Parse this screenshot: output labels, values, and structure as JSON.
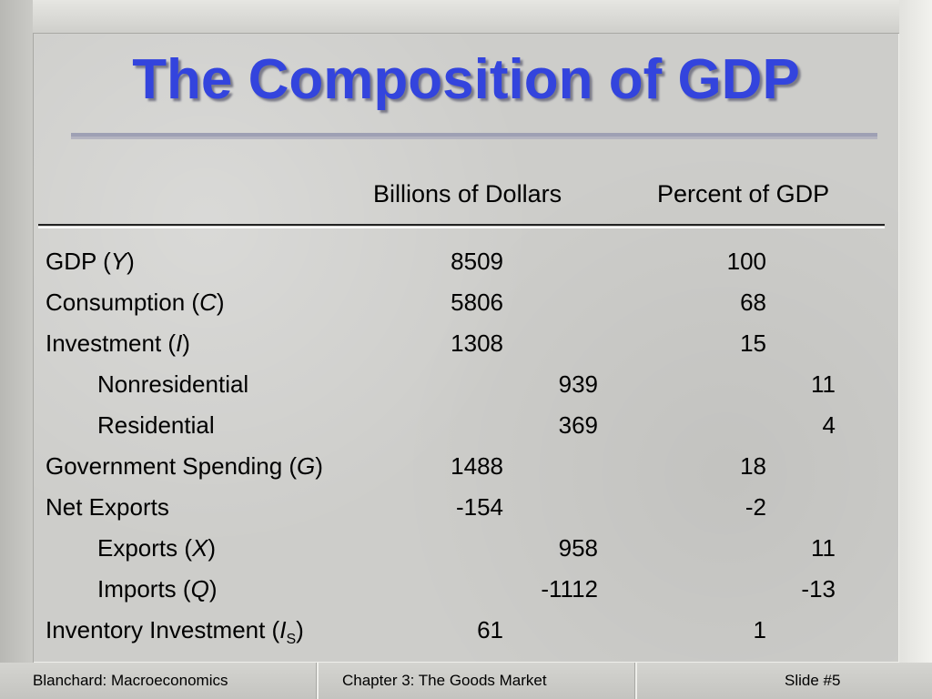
{
  "slide": {
    "title": "The Composition of GDP",
    "column_headers": {
      "billions": "Billions of Dollars",
      "percent": "Percent of GDP"
    },
    "rows": [
      {
        "label": "GDP (",
        "var": "Y",
        "sub": "",
        "close": ")",
        "billions": "8509",
        "billions_sub": "",
        "percent": "100",
        "percent_sub": "",
        "indent": false
      },
      {
        "label": "Consumption (",
        "var": "C",
        "sub": "",
        "close": ")",
        "billions": "5806",
        "billions_sub": "",
        "percent": "68",
        "percent_sub": "",
        "indent": false
      },
      {
        "label": "Investment (",
        "var": "I",
        "sub": "",
        "close": ")",
        "billions": "1308",
        "billions_sub": "",
        "percent": "15",
        "percent_sub": "",
        "indent": false
      },
      {
        "label": "Nonresidential",
        "var": "",
        "sub": "",
        "close": "",
        "billions": "",
        "billions_sub": "939",
        "percent": "",
        "percent_sub": "11",
        "indent": true
      },
      {
        "label": "Residential",
        "var": "",
        "sub": "",
        "close": "",
        "billions": "",
        "billions_sub": "369",
        "percent": "",
        "percent_sub": "4",
        "indent": true
      },
      {
        "label": "Government Spending (",
        "var": "G",
        "sub": "",
        "close": ")",
        "billions": "1488",
        "billions_sub": "",
        "percent": "18",
        "percent_sub": "",
        "indent": false
      },
      {
        "label": "Net Exports",
        "var": "",
        "sub": "",
        "close": "",
        "billions": "-154",
        "billions_sub": "",
        "percent": "-2",
        "percent_sub": "",
        "indent": false
      },
      {
        "label": "Exports (",
        "var": "X",
        "sub": "",
        "close": ")",
        "billions": "",
        "billions_sub": "958",
        "percent": "",
        "percent_sub": "11",
        "indent": true
      },
      {
        "label": "Imports (",
        "var": "Q",
        "sub": "",
        "close": ")",
        "billions": "",
        "billions_sub": "-1112",
        "percent": "",
        "percent_sub": "-13",
        "indent": true
      },
      {
        "label": "Inventory Investment (",
        "var": "I",
        "sub": "S",
        "close": ")",
        "billions": "61",
        "billions_sub": "",
        "percent": "1",
        "percent_sub": "",
        "indent": false
      }
    ]
  },
  "footer": {
    "left": "Blanchard: Macroeconomics",
    "center": "Chapter 3: The Goods Market",
    "right": "Slide #5"
  }
}
